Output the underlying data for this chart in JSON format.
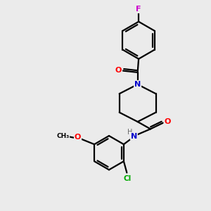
{
  "background_color": "#ebebeb",
  "bond_color": "#000000",
  "atom_colors": {
    "N": "#0000cc",
    "O": "#ff0000",
    "F": "#cc00cc",
    "Cl": "#00aa00",
    "C": "#000000",
    "H": "#666666"
  },
  "figsize": [
    3.0,
    3.0
  ],
  "dpi": 100,
  "lw": 1.6
}
